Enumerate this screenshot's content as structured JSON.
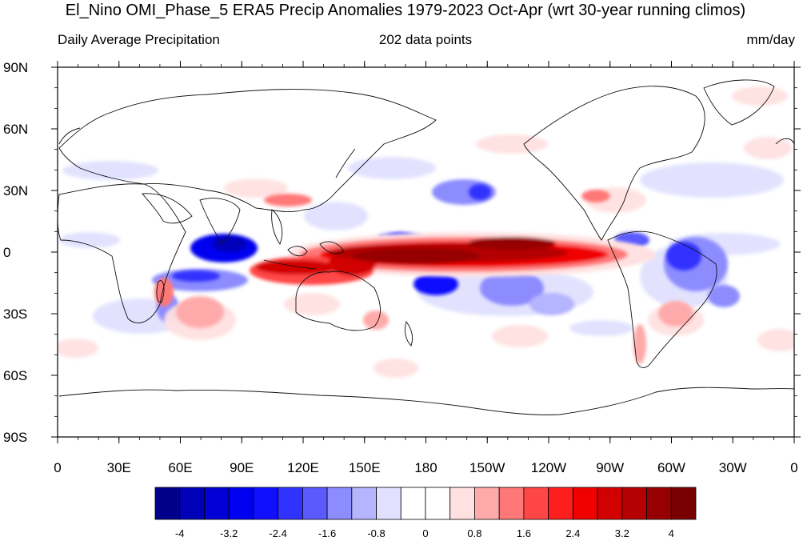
{
  "title": "El_Nino OMI_Phase_5 ERA5 Precip Anomalies 1979-2023 Oct-Apr (wrt 30-year running climos)",
  "subtitle_left": "Daily Average Precipitation",
  "subtitle_center": "202 data points",
  "subtitle_right": "mm/day",
  "lat_labels": [
    "90N",
    "60N",
    "30N",
    "0",
    "30S",
    "60S",
    "90S"
  ],
  "lon_labels": [
    "0",
    "30E",
    "60E",
    "90E",
    "120E",
    "150E",
    "180",
    "150W",
    "120W",
    "90W",
    "60W",
    "30W",
    "0"
  ],
  "colorbar": {
    "colors": [
      "#00008b",
      "#0000b8",
      "#0000d6",
      "#0000f0",
      "#1010ff",
      "#3232ff",
      "#5a5aff",
      "#8c8cff",
      "#b4b4ff",
      "#e1e1ff",
      "#ffffff",
      "#ffffff",
      "#ffe1e1",
      "#ffaaaa",
      "#ff7878",
      "#ff4646",
      "#ff1e1e",
      "#f00000",
      "#d20000",
      "#b40000",
      "#960000",
      "#780000"
    ],
    "labels": [
      "-4",
      "-3.2",
      "-2.4",
      "-1.6",
      "-0.8",
      "0",
      "0.8",
      "1.6",
      "2.4",
      "3.2",
      "4"
    ]
  },
  "map": {
    "lon_range": [
      0,
      360
    ],
    "lat_range": [
      -90,
      90
    ],
    "anomalies": [
      {
        "type": "positive",
        "level": "strong",
        "lon_range": [
          150,
          240
        ],
        "lat_range": [
          -10,
          8
        ],
        "note": "central/eastern equatorial Pacific"
      },
      {
        "type": "positive",
        "level": "strong",
        "lon_range": [
          100,
          150
        ],
        "lat_range": [
          -12,
          -2
        ],
        "note": "Indonesia / southern Maritime Continent"
      },
      {
        "type": "negative",
        "level": "strong",
        "lon_range": [
          60,
          95
        ],
        "lat_range": [
          -5,
          8
        ],
        "note": "western equatorial Indian Ocean"
      },
      {
        "type": "negative",
        "level": "strong",
        "lon_range": [
          175,
          190
        ],
        "lat_range": [
          -20,
          -10
        ],
        "note": "SPCZ"
      },
      {
        "type": "negative",
        "level": "moderate",
        "lon_range": [
          285,
          330
        ],
        "lat_range": [
          -30,
          5
        ],
        "note": "northern/eastern South America"
      },
      {
        "type": "positive",
        "level": "moderate",
        "lon_range": [
          300,
          315
        ],
        "lat_range": [
          -40,
          -25
        ],
        "note": "SE South America"
      }
    ]
  }
}
